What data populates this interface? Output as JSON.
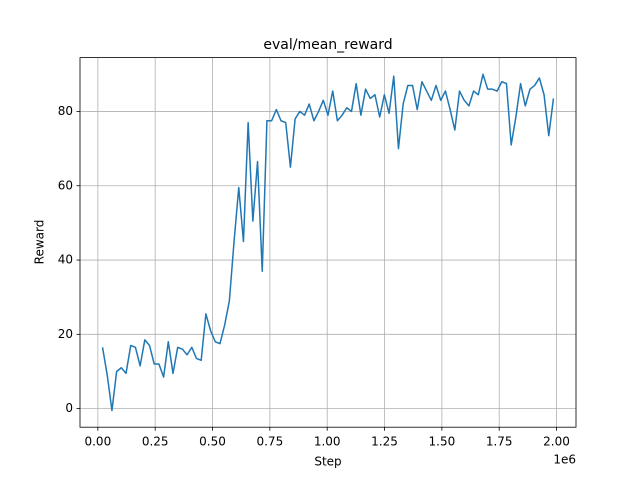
{
  "chart_data": {
    "type": "line",
    "title": "eval/mean_reward",
    "x_label": "Step",
    "y_label": "Reward",
    "x_offset_label": "1e6",
    "x": [
      20480,
      40960,
      61440,
      81920,
      102400,
      122880,
      143360,
      163840,
      184320,
      204800,
      225280,
      245760,
      266240,
      286720,
      307200,
      327680,
      348160,
      368640,
      389120,
      409600,
      430080,
      450560,
      471040,
      491520,
      512000,
      532480,
      552960,
      573440,
      593920,
      614400,
      634880,
      655360,
      675840,
      696320,
      716800,
      737280,
      757760,
      778240,
      798720,
      819200,
      839680,
      860160,
      880640,
      901120,
      921600,
      942080,
      962560,
      983040,
      1003520,
      1024000,
      1044480,
      1064960,
      1085440,
      1105920,
      1126400,
      1146880,
      1167360,
      1187840,
      1208320,
      1228800,
      1249280,
      1269760,
      1290240,
      1310720,
      1331200,
      1351680,
      1372160,
      1392640,
      1413120,
      1433600,
      1454080,
      1474560,
      1495040,
      1515520,
      1536000,
      1556480,
      1576960,
      1597440,
      1617920,
      1638400,
      1658880,
      1679360,
      1699840,
      1720320,
      1740800,
      1761280,
      1781760,
      1802240,
      1822720,
      1843200,
      1863680,
      1884160,
      1904640,
      1925120,
      1945600,
      1966080,
      1986560
    ],
    "series": [
      {
        "color": "#1f77b4",
        "values": [
          16.5,
          9,
          -0.5,
          10,
          11,
          9.5,
          17,
          16.5,
          11.5,
          18.5,
          17,
          12,
          12,
          8.5,
          18,
          9.5,
          16.5,
          16,
          14.5,
          16.5,
          13.5,
          13,
          25.5,
          21,
          18,
          17.5,
          22.5,
          29,
          45,
          59.5,
          45,
          77,
          50.5,
          66.5,
          37,
          77.5,
          77.5,
          80.5,
          77.5,
          77,
          65,
          78,
          80,
          79,
          82,
          77.5,
          80,
          83,
          79,
          85.5,
          77.5,
          79,
          81,
          80,
          87.5,
          79,
          86,
          83.5,
          84.5,
          78.5,
          84.5,
          79.5,
          89.5,
          70,
          82,
          87,
          87,
          80.5,
          88,
          85.5,
          83,
          87,
          83,
          85.5,
          80.5,
          75,
          85.5,
          83,
          81.5,
          85.5,
          84.5,
          90,
          86,
          86,
          85.5,
          88,
          87.5,
          71,
          78.5,
          87.5,
          81.5,
          86,
          87,
          89,
          84.5,
          73.5,
          83.5
        ]
      }
    ],
    "xlim": [
      -77824,
      2084864
    ],
    "xticks": [
      {
        "value": 0,
        "label": "0.00"
      },
      {
        "value": 250000,
        "label": "0.25"
      },
      {
        "value": 500000,
        "label": "0.50"
      },
      {
        "value": 750000,
        "label": "0.75"
      },
      {
        "value": 1000000,
        "label": "1.00"
      },
      {
        "value": 1250000,
        "label": "1.25"
      },
      {
        "value": 1500000,
        "label": "1.50"
      },
      {
        "value": 1750000,
        "label": "1.75"
      },
      {
        "value": 2000000,
        "label": "2.00"
      }
    ],
    "ylim": [
      -5,
      94.5
    ],
    "yticks": [
      0,
      20,
      40,
      60,
      80
    ],
    "grid": true
  }
}
